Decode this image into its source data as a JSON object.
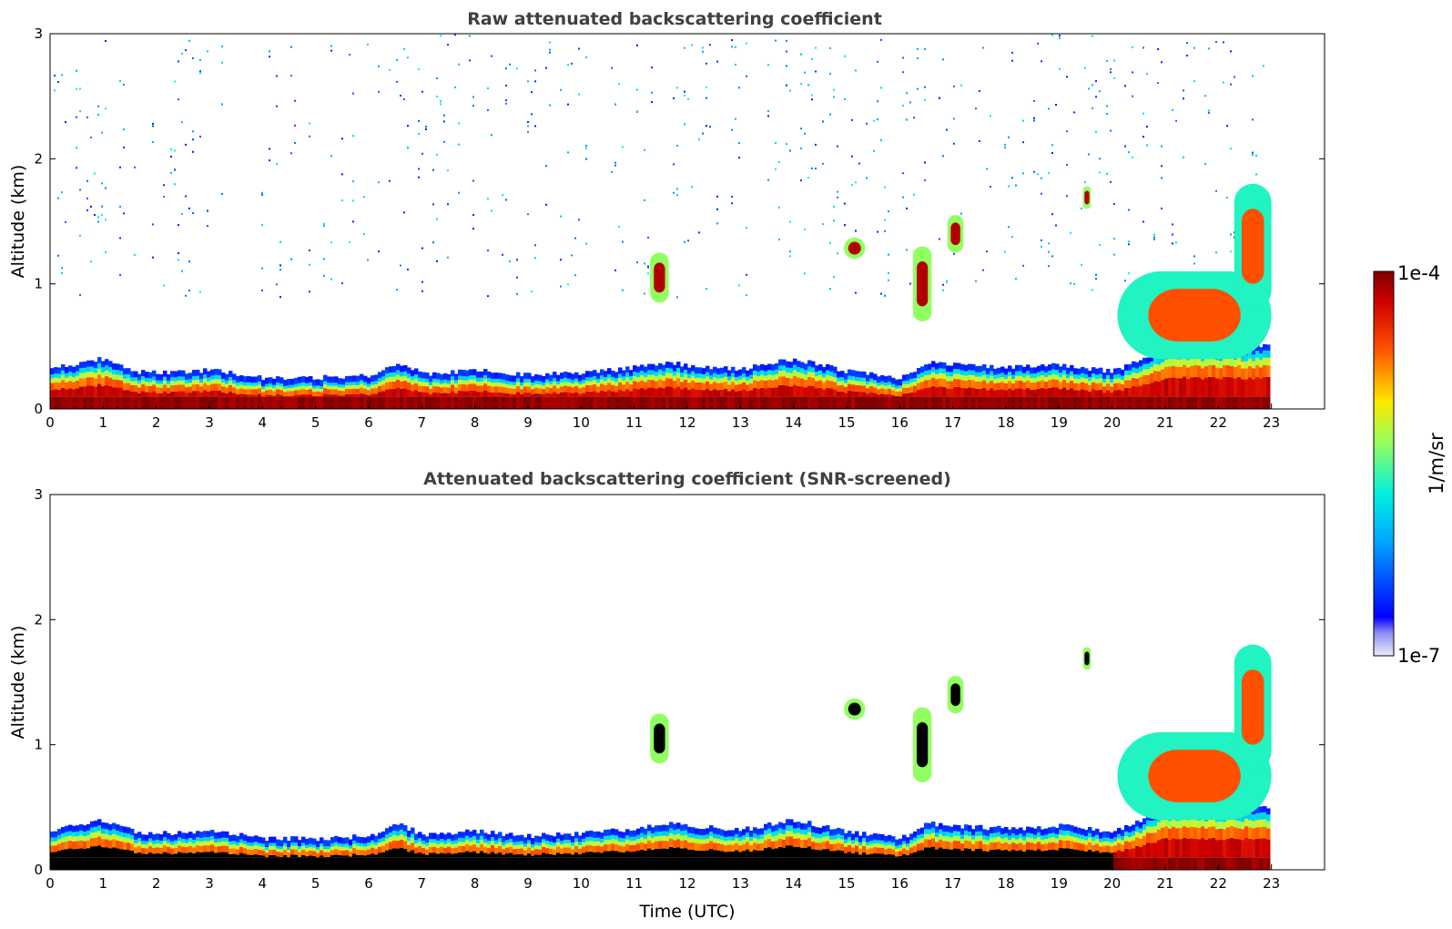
{
  "chart_data": [
    {
      "type": "heatmap",
      "title": "Raw attenuated backscattering coefficient",
      "xlabel": "",
      "ylabel": "Altitude (km)",
      "x_ticks": [
        "0",
        "1",
        "2",
        "3",
        "4",
        "5",
        "6",
        "7",
        "8",
        "9",
        "10",
        "11",
        "12",
        "13",
        "14",
        "15",
        "16",
        "17",
        "18",
        "19",
        "20",
        "21",
        "22",
        "23"
      ],
      "y_ticks": [
        "0",
        "1",
        "2",
        "3"
      ],
      "xlim": [
        0,
        24
      ],
      "ylim": [
        0,
        3
      ],
      "x_units": "hours UTC",
      "data_end_hour": 23,
      "boundary_layer_top_km": [
        [
          0,
          0.27
        ],
        [
          0.9,
          0.35
        ],
        [
          1.6,
          0.25
        ],
        [
          2.5,
          0.24
        ],
        [
          3,
          0.26
        ],
        [
          4,
          0.2
        ],
        [
          5,
          0.2
        ],
        [
          6,
          0.22
        ],
        [
          6.5,
          0.32
        ],
        [
          7,
          0.23
        ],
        [
          8,
          0.26
        ],
        [
          9,
          0.22
        ],
        [
          10,
          0.24
        ],
        [
          11,
          0.28
        ],
        [
          11.5,
          0.32
        ],
        [
          12,
          0.3
        ],
        [
          13,
          0.27
        ],
        [
          14,
          0.35
        ],
        [
          15,
          0.25
        ],
        [
          16,
          0.2
        ],
        [
          16.5,
          0.32
        ],
        [
          17,
          0.3
        ],
        [
          18,
          0.28
        ],
        [
          19,
          0.3
        ],
        [
          20,
          0.25
        ],
        [
          21,
          0.45
        ],
        [
          22,
          0.45
        ],
        [
          23,
          0.45
        ]
      ],
      "cloud_features": [
        {
          "time_start": 11.3,
          "time_end": 11.65,
          "alt_bottom_km": 0.85,
          "alt_top_km": 1.25,
          "level": "high"
        },
        {
          "time_start": 14.95,
          "time_end": 15.35,
          "alt_bottom_km": 1.2,
          "alt_top_km": 1.37,
          "level": "high"
        },
        {
          "time_start": 16.25,
          "time_end": 16.6,
          "alt_bottom_km": 0.7,
          "alt_top_km": 1.3,
          "level": "high"
        },
        {
          "time_start": 16.9,
          "time_end": 17.2,
          "alt_bottom_km": 1.25,
          "alt_top_km": 1.55,
          "level": "high"
        },
        {
          "time_start": 19.45,
          "time_end": 19.6,
          "alt_bottom_km": 1.6,
          "alt_top_km": 1.78,
          "level": "high"
        },
        {
          "time_start": 20.1,
          "time_end": 23.0,
          "alt_bottom_km": 0.4,
          "alt_top_km": 1.1,
          "level": "mid"
        },
        {
          "time_start": 22.3,
          "time_end": 23.0,
          "alt_bottom_km": 0.8,
          "alt_top_km": 1.8,
          "level": "mid"
        }
      ]
    },
    {
      "type": "heatmap",
      "title": "Attenuated backscattering coefficient (SNR-screened)",
      "xlabel": "Time (UTC)",
      "ylabel": "Altitude (km)",
      "x_ticks": [
        "0",
        "1",
        "2",
        "3",
        "4",
        "5",
        "6",
        "7",
        "8",
        "9",
        "10",
        "11",
        "12",
        "13",
        "14",
        "15",
        "16",
        "17",
        "18",
        "19",
        "20",
        "21",
        "22",
        "23"
      ],
      "y_ticks": [
        "0",
        "1",
        "2",
        "3"
      ],
      "xlim": [
        0,
        24
      ],
      "ylim": [
        0,
        3
      ],
      "x_units": "hours UTC",
      "data_end_hour": 23,
      "saturated_below_km": 0.15
    }
  ],
  "colorbar": {
    "label": "1/m/sr",
    "max_label": "1e-4",
    "min_label": "1e-7",
    "scale": "log",
    "colormap": "jet"
  }
}
